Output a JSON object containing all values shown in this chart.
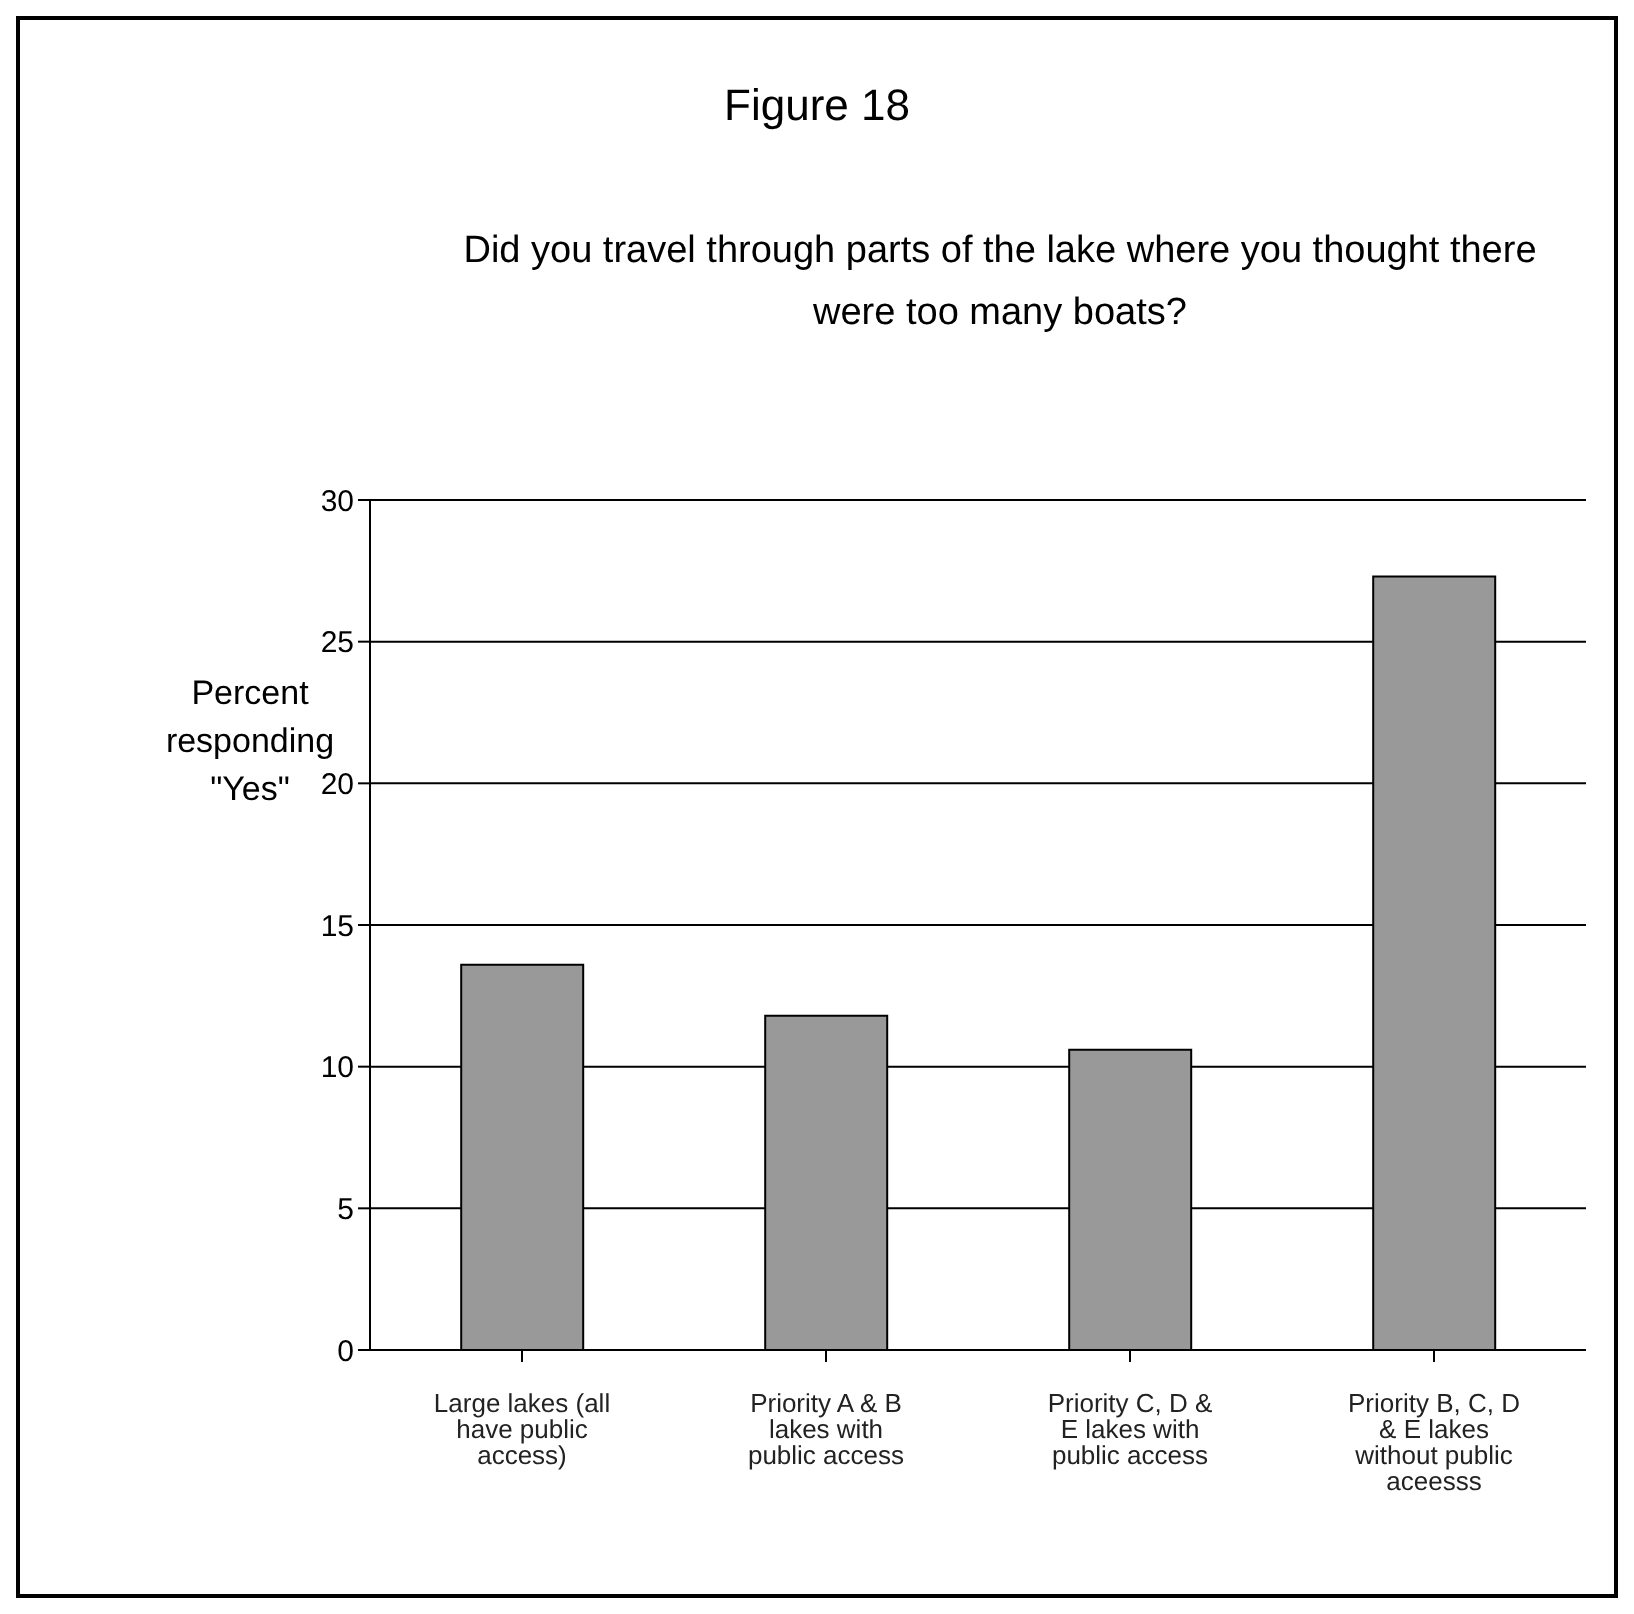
{
  "chart_data": {
    "type": "bar",
    "title": "Figure 18",
    "subtitle": "Did you travel through parts of the lake where you thought there were too many boats?",
    "ylabel": "Percent responding \"Yes\"",
    "categories": [
      "Large lakes (all have public access)",
      "Priority A & B lakes with public access",
      "Priority C, D & E lakes with public access",
      "Priority B, C, D & E lakes without public aceesss"
    ],
    "values": [
      13.6,
      11.8,
      10.6,
      27.3
    ],
    "color": "#999999",
    "ylim": [
      0,
      30
    ],
    "yticks": [
      0,
      5,
      10,
      15,
      20,
      25,
      30
    ],
    "grid": "y",
    "legend": false
  }
}
